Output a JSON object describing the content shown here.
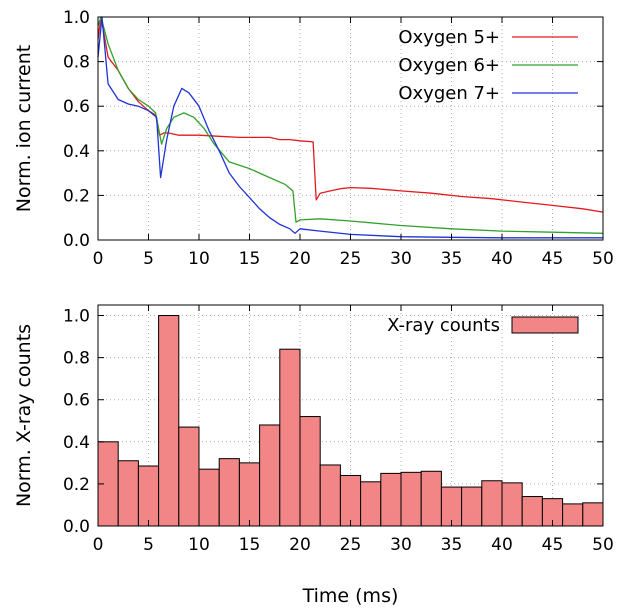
{
  "chart_data": [
    {
      "type": "line",
      "ylabel": "Norm. ion current",
      "xlim": [
        0,
        50
      ],
      "ylim": [
        0,
        1.0
      ],
      "x_ticks": [
        "0",
        "5",
        "10",
        "15",
        "20",
        "25",
        "30",
        "35",
        "40",
        "45",
        "50"
      ],
      "y_ticks": [
        "0.0",
        "0.2",
        "0.4",
        "0.6",
        "0.8",
        "1.0"
      ],
      "grid": true,
      "legend_position": "top-right",
      "series": [
        {
          "name": "Oxygen 5+",
          "color": "#e31a1c",
          "points": [
            [
              0,
              0.9
            ],
            [
              0.3,
              1.0
            ],
            [
              1,
              0.82
            ],
            [
              2,
              0.76
            ],
            [
              3,
              0.68
            ],
            [
              4,
              0.62
            ],
            [
              5,
              0.58
            ],
            [
              5.7,
              0.56
            ],
            [
              6.1,
              0.47
            ],
            [
              6.5,
              0.48
            ],
            [
              7,
              0.48
            ],
            [
              8,
              0.47
            ],
            [
              10,
              0.47
            ],
            [
              12,
              0.465
            ],
            [
              14,
              0.46
            ],
            [
              16,
              0.46
            ],
            [
              17,
              0.46
            ],
            [
              18,
              0.45
            ],
            [
              19,
              0.45
            ],
            [
              20,
              0.445
            ],
            [
              21.3,
              0.44
            ],
            [
              21.6,
              0.18
            ],
            [
              22,
              0.21
            ],
            [
              23,
              0.22
            ],
            [
              24,
              0.23
            ],
            [
              25,
              0.235
            ],
            [
              27,
              0.232
            ],
            [
              30,
              0.22
            ],
            [
              33,
              0.21
            ],
            [
              36,
              0.195
            ],
            [
              39,
              0.185
            ],
            [
              42,
              0.17
            ],
            [
              45,
              0.155
            ],
            [
              48,
              0.14
            ],
            [
              50,
              0.125
            ]
          ]
        },
        {
          "name": "Oxygen 6+",
          "color": "#33a02c",
          "points": [
            [
              0,
              0.96
            ],
            [
              0.3,
              1.0
            ],
            [
              1,
              0.88
            ],
            [
              2,
              0.76
            ],
            [
              3,
              0.68
            ],
            [
              4,
              0.63
            ],
            [
              5,
              0.6
            ],
            [
              5.7,
              0.57
            ],
            [
              6.3,
              0.43
            ],
            [
              6.8,
              0.5
            ],
            [
              7.5,
              0.55
            ],
            [
              8.5,
              0.57
            ],
            [
              9.5,
              0.55
            ],
            [
              10.5,
              0.5
            ],
            [
              11.5,
              0.43
            ],
            [
              13,
              0.35
            ],
            [
              15,
              0.32
            ],
            [
              17,
              0.28
            ],
            [
              18.5,
              0.25
            ],
            [
              19.3,
              0.22
            ],
            [
              19.6,
              0.08
            ],
            [
              20,
              0.09
            ],
            [
              22,
              0.095
            ],
            [
              25,
              0.085
            ],
            [
              30,
              0.065
            ],
            [
              35,
              0.05
            ],
            [
              40,
              0.04
            ],
            [
              45,
              0.035
            ],
            [
              50,
              0.03
            ]
          ]
        },
        {
          "name": "Oxygen 7+",
          "color": "#1f33d6",
          "points": [
            [
              0,
              0.82
            ],
            [
              0.4,
              1.0
            ],
            [
              1,
              0.7
            ],
            [
              2,
              0.63
            ],
            [
              3,
              0.61
            ],
            [
              4,
              0.6
            ],
            [
              5,
              0.58
            ],
            [
              5.8,
              0.55
            ],
            [
              6.2,
              0.28
            ],
            [
              6.8,
              0.45
            ],
            [
              7.5,
              0.6
            ],
            [
              8.3,
              0.68
            ],
            [
              9,
              0.66
            ],
            [
              10,
              0.6
            ],
            [
              11,
              0.49
            ],
            [
              12,
              0.4
            ],
            [
              13,
              0.3
            ],
            [
              14,
              0.24
            ],
            [
              15,
              0.19
            ],
            [
              16,
              0.14
            ],
            [
              17,
              0.1
            ],
            [
              18,
              0.07
            ],
            [
              19,
              0.05
            ],
            [
              19.5,
              0.03
            ],
            [
              20,
              0.05
            ],
            [
              22,
              0.04
            ],
            [
              25,
              0.025
            ],
            [
              30,
              0.015
            ],
            [
              35,
              0.012
            ],
            [
              40,
              0.01
            ],
            [
              45,
              0.01
            ],
            [
              50,
              0.01
            ]
          ]
        }
      ]
    },
    {
      "type": "bar",
      "xlabel": "Time (ms)",
      "ylabel": "Norm. X-ray counts",
      "xlim": [
        0,
        50
      ],
      "ylim": [
        0,
        1.05
      ],
      "x_ticks": [
        "0",
        "5",
        "10",
        "15",
        "20",
        "25",
        "30",
        "35",
        "40",
        "45",
        "50"
      ],
      "y_ticks": [
        "0.0",
        "0.2",
        "0.4",
        "0.6",
        "0.8",
        "1.0"
      ],
      "grid": true,
      "legend_position": "top-right",
      "bin_width": 2,
      "series": [
        {
          "name": "X-ray counts",
          "color": "#f28585",
          "bin_starts": [
            0,
            2,
            4,
            6,
            8,
            10,
            12,
            14,
            16,
            18,
            20,
            22,
            24,
            26,
            28,
            30,
            32,
            34,
            36,
            38,
            40,
            42,
            44,
            46,
            48
          ],
          "values": [
            0.4,
            0.31,
            0.285,
            1.0,
            0.47,
            0.27,
            0.32,
            0.3,
            0.48,
            0.84,
            0.52,
            0.29,
            0.24,
            0.21,
            0.25,
            0.255,
            0.26,
            0.185,
            0.185,
            0.215,
            0.205,
            0.14,
            0.13,
            0.105,
            0.11
          ]
        }
      ]
    }
  ]
}
